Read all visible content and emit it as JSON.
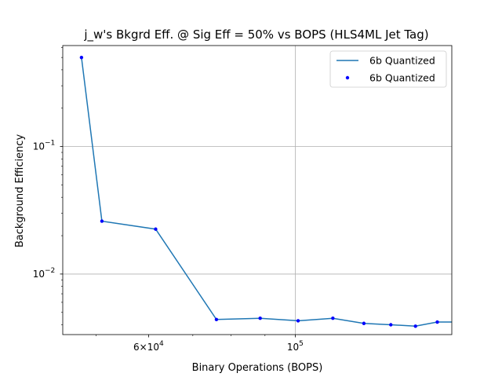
{
  "chart_data": {
    "type": "line",
    "title": "j_w's Bkgrd Eff. @ Sig Eff = 50% vs BOPS (HLS4ML Jet Tag)",
    "xlabel": "Binary Operations (BOPS)",
    "ylabel": "Background Efficiency",
    "xscale": "log",
    "yscale": "log",
    "xlim": [
      44500,
      172500
    ],
    "ylim": [
      0.00335,
      0.62
    ],
    "grid": "major",
    "legend_position": "top-right",
    "x_tick_labels": [
      {
        "value": 60000,
        "base": "6",
        "exp": "4"
      },
      {
        "value": 100000,
        "base": "10",
        "exp": "5"
      }
    ],
    "y_tick_labels": [
      {
        "value": 0.1,
        "base": "10",
        "exp": "−1"
      },
      {
        "value": 0.01,
        "base": "10",
        "exp": "−2"
      }
    ],
    "series": [
      {
        "name": "6b Quantized",
        "style": "line",
        "color": "#1f77b4",
        "x": [
          47500,
          51000,
          61500,
          76000,
          88500,
          101000,
          114000,
          127000,
          139500,
          152000,
          164000,
          175000
        ],
        "y": [
          0.5,
          0.026,
          0.0225,
          0.0044,
          0.0045,
          0.0043,
          0.0045,
          0.0041,
          0.004,
          0.0039,
          0.0042,
          0.0042
        ]
      },
      {
        "name": "6b Quantized",
        "style": "points",
        "color": "#0000ff",
        "x": [
          47500,
          51000,
          61500,
          76000,
          88500,
          101000,
          114000,
          127000,
          139500,
          152000,
          164000,
          175000
        ],
        "y": [
          0.5,
          0.026,
          0.0225,
          0.0044,
          0.0045,
          0.0043,
          0.0045,
          0.0041,
          0.004,
          0.0039,
          0.0042,
          0.0042
        ]
      }
    ]
  }
}
